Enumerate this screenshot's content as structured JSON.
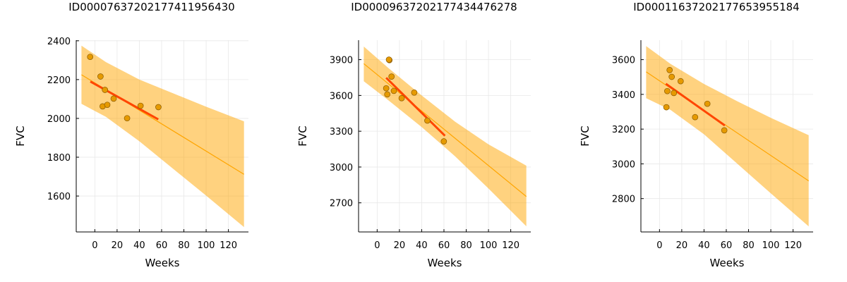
{
  "chart_data": [
    {
      "type": "scatter",
      "title": "ID00007637202177411956430",
      "xlabel": "Weeks",
      "ylabel": "FVC",
      "xlim": [
        -16.7,
        138
      ],
      "ylim": [
        1415,
        2403
      ],
      "xticks": [
        0,
        20,
        40,
        60,
        80,
        100,
        120
      ],
      "yticks": [
        1600,
        1800,
        2000,
        2200,
        2400
      ],
      "grid": true,
      "points": {
        "x": [
          -4.2,
          5.1,
          9.1,
          7.0,
          11.2,
          16.9,
          29.0,
          41.1,
          57.1
        ],
        "y": [
          2317,
          2216,
          2147,
          2062,
          2070,
          2102,
          2001,
          2065,
          2058
        ]
      },
      "fit_short": {
        "x": [
          -4,
          57
        ],
        "y": [
          2190,
          1995
        ]
      },
      "fit_long": {
        "x": [
          -12,
          134
        ],
        "y": [
          2225,
          1712
        ]
      },
      "band": {
        "x": [
          -12,
          10,
          40,
          70,
          100,
          134
        ],
        "upper": [
          2375,
          2290,
          2200,
          2130,
          2060,
          1985
        ],
        "lower": [
          2075,
          2008,
          1882,
          1742,
          1602,
          1440
        ]
      }
    },
    {
      "type": "scatter",
      "title": "ID00009637202177434476278",
      "xlabel": "Weeks",
      "ylabel": "FVC",
      "xlim": [
        -16.7,
        138
      ],
      "ylim": [
        2456,
        4063
      ],
      "xticks": [
        0,
        20,
        40,
        60,
        80,
        100,
        120
      ],
      "yticks": [
        2700,
        3000,
        3300,
        3600,
        3900
      ],
      "grid": true,
      "points": {
        "x": [
          11.0,
          10.6,
          12.9,
          8.1,
          9.1,
          15.0,
          22.0,
          33.3,
          45.1,
          59.9
        ],
        "y": [
          3896,
          3900,
          3758,
          3660,
          3609,
          3638,
          3577,
          3624,
          3389,
          3215
        ]
      },
      "fit_short": {
        "x": [
          8.1,
          60.9
        ],
        "y": [
          3748,
          3262
        ]
      },
      "fit_long": {
        "x": [
          -12,
          134
        ],
        "y": [
          3866,
          2753
        ]
      },
      "band": {
        "x": [
          -12,
          10,
          40,
          70,
          100,
          134
        ],
        "upper": [
          4010,
          3830,
          3600,
          3380,
          3190,
          3011
        ],
        "lower": [
          3719,
          3560,
          3335,
          3090,
          2820,
          2503
        ]
      }
    },
    {
      "type": "scatter",
      "title": "ID00011637202177653955184",
      "xlabel": "Weeks",
      "ylabel": "FVC",
      "xlim": [
        -16.7,
        138
      ],
      "ylim": [
        2608,
        3712
      ],
      "xticks": [
        0,
        20,
        40,
        60,
        80,
        100,
        120
      ],
      "yticks": [
        2800,
        3000,
        3200,
        3400,
        3600
      ],
      "grid": true,
      "points": {
        "x": [
          9.1,
          11.0,
          19.0,
          7.0,
          12.9,
          6.2,
          32.0,
          43.0,
          58.2
        ],
        "y": [
          3540,
          3501,
          3476,
          3419,
          3408,
          3326,
          3269,
          3346,
          3193
        ]
      },
      "fit_short": {
        "x": [
          5.7,
          58.7
        ],
        "y": [
          3461,
          3221
        ]
      },
      "fit_long": {
        "x": [
          -12,
          134
        ],
        "y": [
          3530,
          2902
        ]
      },
      "band": {
        "x": [
          -12,
          10,
          40,
          70,
          100,
          134
        ],
        "upper": [
          3678,
          3575,
          3460,
          3360,
          3265,
          3165
        ],
        "lower": [
          3378,
          3310,
          3170,
          3000,
          2830,
          2640
        ]
      }
    }
  ],
  "colors": {
    "band": "#ffa500",
    "fit_long": "#ffa500",
    "fit_short": "#ff4500",
    "point": "#e69a00",
    "grid": "#e8e8e8"
  }
}
